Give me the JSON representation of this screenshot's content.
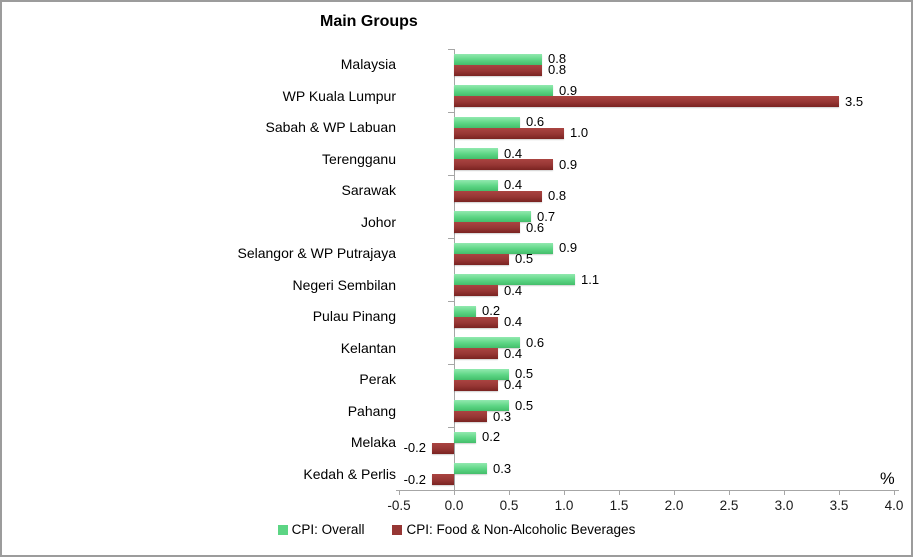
{
  "window": {
    "background": "#FFFFFF",
    "border_color": "#9C9C9C"
  },
  "chart_data": {
    "type": "bar",
    "orientation": "horizontal",
    "title": "Main Groups",
    "xlabel": "%",
    "xlim": [
      -0.5,
      4.0
    ],
    "x_ticks": [
      -0.5,
      0,
      0.5,
      1,
      1.5,
      2,
      2.5,
      3,
      3.5,
      4
    ],
    "x_tick_labels": [
      "-0.5",
      "0.0",
      "0.5",
      "1.0",
      "1.5",
      "2.0",
      "2.5",
      "3.0",
      "3.5",
      "4.0"
    ],
    "grid": false,
    "legend_position": "bottom",
    "axis_color": "#A6A6A6",
    "text_color": "#000000",
    "categories": [
      "Malaysia",
      "WP Kuala Lumpur",
      "Sabah & WP Labuan",
      "Terengganu",
      "Sarawak",
      "Johor",
      "Selangor & WP Putrajaya",
      "Negeri Sembilan",
      "Pulau Pinang",
      "Kelantan",
      "Perak",
      "Pahang",
      "Melaka",
      "Kedah & Perlis"
    ],
    "series": [
      {
        "key": "cpi-overall",
        "name": "CPI: Overall",
        "color": "#5CD584",
        "gradient": [
          "#92E9AF",
          "#5CD584",
          "#44BE6B"
        ],
        "values": [
          0.8,
          0.9,
          0.6,
          0.4,
          0.4,
          0.7,
          0.9,
          1.1,
          0.2,
          0.6,
          0.5,
          0.5,
          0.2,
          0.3
        ]
      },
      {
        "key": "cpi-food",
        "name": "CPI: Food & Non-Alcoholic Beverages",
        "color": "#963634",
        "gradient": [
          "#AA4441",
          "#963634",
          "#7A2321"
        ],
        "values": [
          0.8,
          3.5,
          1.0,
          0.9,
          0.8,
          0.6,
          0.5,
          0.4,
          0.4,
          0.4,
          0.4,
          0.3,
          -0.2,
          -0.2
        ]
      }
    ]
  }
}
